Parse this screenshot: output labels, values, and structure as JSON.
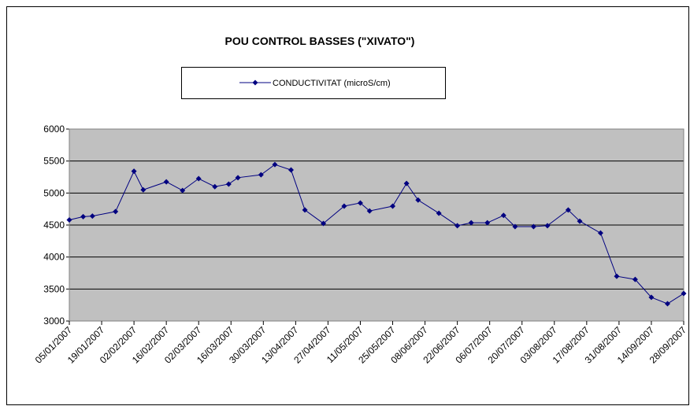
{
  "chart_data": {
    "type": "line",
    "title": "POU CONTROL BASSES (\"XIVATO\")",
    "x": [
      "05/01/2007",
      "11/01/2007",
      "15/01/2007",
      "25/01/2007",
      "02/02/2007",
      "06/02/2007",
      "16/02/2007",
      "23/02/2007",
      "02/03/2007",
      "09/03/2007",
      "15/03/2007",
      "19/03/2007",
      "29/03/2007",
      "04/04/2007",
      "11/04/2007",
      "17/04/2007",
      "25/04/2007",
      "04/05/2007",
      "11/05/2007",
      "15/05/2007",
      "25/05/2007",
      "31/05/2007",
      "05/06/2007",
      "14/06/2007",
      "22/06/2007",
      "28/06/2007",
      "05/07/2007",
      "12/07/2007",
      "17/07/2007",
      "25/07/2007",
      "31/07/2007",
      "09/08/2007",
      "14/08/2007",
      "23/08/2007",
      "30/08/2007",
      "07/09/2007",
      "14/09/2007",
      "21/09/2007",
      "28/09/2007"
    ],
    "series": [
      {
        "name": "CONDUCTIVITAT (microS/cm)",
        "color": "#000080",
        "values": [
          4580,
          4630,
          4640,
          4710,
          5340,
          5050,
          5175,
          5040,
          5225,
          5100,
          5140,
          5240,
          5285,
          5445,
          5360,
          4735,
          4525,
          4795,
          4845,
          4720,
          4795,
          5150,
          4890,
          4685,
          4490,
          4535,
          4535,
          4650,
          4475,
          4475,
          4490,
          4735,
          4560,
          4375,
          3700,
          3650,
          3370,
          3270,
          3430
        ]
      }
    ],
    "xlim": [
      "05/01/2007",
      "28/09/2007"
    ],
    "xticks": [
      "05/01/2007",
      "19/01/2007",
      "02/02/2007",
      "16/02/2007",
      "02/03/2007",
      "16/03/2007",
      "30/03/2007",
      "13/04/2007",
      "27/04/2007",
      "11/05/2007",
      "25/05/2007",
      "08/06/2007",
      "22/06/2007",
      "06/07/2007",
      "20/07/2007",
      "03/08/2007",
      "17/08/2007",
      "31/08/2007",
      "14/09/2007",
      "28/09/2007"
    ],
    "ylim": [
      3000,
      6000
    ],
    "yticks": [
      3000,
      3500,
      4000,
      4500,
      5000,
      5500,
      6000
    ],
    "grid": true,
    "plot_background": "#c0c0c0"
  }
}
